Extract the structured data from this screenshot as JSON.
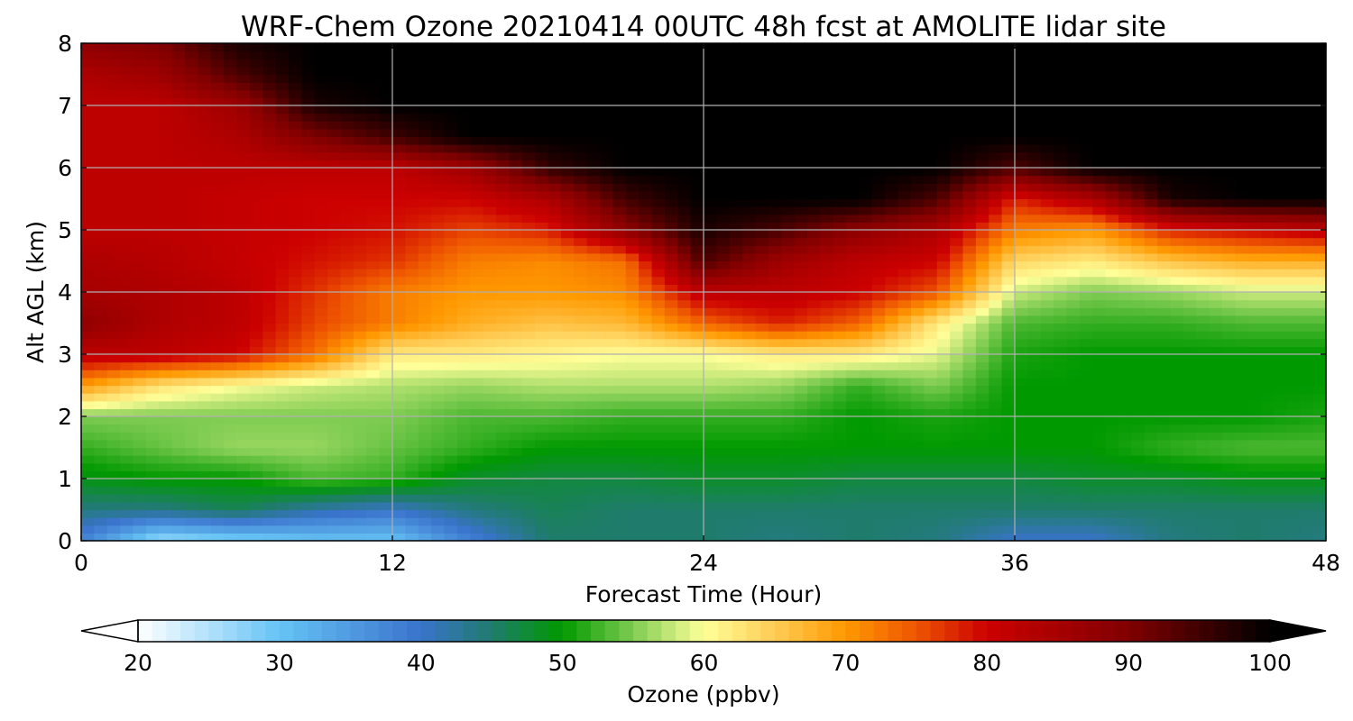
{
  "chart_data": {
    "type": "heatmap",
    "title": "WRF-Chem Ozone  20210414 00UTC 48h fcst at AMOLITE lidar site",
    "xlabel": "Forecast Time (Hour)",
    "ylabel": "Alt AGL (km)",
    "xlim": [
      0,
      48
    ],
    "ylim": [
      0,
      8
    ],
    "x_ticks": [
      "0",
      "12",
      "24",
      "36",
      "48"
    ],
    "y_ticks": [
      "0",
      "1",
      "2",
      "3",
      "4",
      "5",
      "6",
      "7",
      "8"
    ],
    "grid": true,
    "colorbar": {
      "label": "Ozone  (ppbv)",
      "range": [
        20,
        100
      ],
      "ticks": [
        "20",
        "30",
        "40",
        "50",
        "60",
        "70",
        "80",
        "90",
        "100"
      ],
      "extend": "both",
      "stops": [
        {
          "v": 20,
          "c": "#ffffff"
        },
        {
          "v": 30,
          "c": "#66c3f5"
        },
        {
          "v": 40,
          "c": "#3a73cc"
        },
        {
          "v": 45,
          "c": "#1f7c6c"
        },
        {
          "v": 50,
          "c": "#009900"
        },
        {
          "v": 55,
          "c": "#7fcc52"
        },
        {
          "v": 60,
          "c": "#ffff99"
        },
        {
          "v": 65,
          "c": "#ffcc55"
        },
        {
          "v": 70,
          "c": "#ff9900"
        },
        {
          "v": 75,
          "c": "#ee5500"
        },
        {
          "v": 80,
          "c": "#cc0000"
        },
        {
          "v": 90,
          "c": "#800000"
        },
        {
          "v": 100,
          "c": "#000000"
        }
      ]
    },
    "x": [
      0,
      3,
      6,
      9,
      12,
      15,
      18,
      21,
      24,
      27,
      30,
      33,
      36,
      39,
      42,
      45,
      48
    ],
    "y": [
      0,
      0.5,
      1,
      1.5,
      2,
      2.5,
      3,
      3.5,
      4,
      4.5,
      5,
      5.5,
      6,
      6.5,
      7,
      7.5,
      8
    ],
    "values": [
      [
        38,
        26,
        28,
        30,
        30,
        38,
        45,
        45,
        45,
        44,
        45,
        44,
        40,
        40,
        44,
        45,
        44
      ],
      [
        44,
        44,
        46,
        42,
        40,
        44,
        46,
        45,
        45,
        45,
        45,
        45,
        45,
        45,
        45,
        45,
        45
      ],
      [
        49,
        50,
        50,
        53,
        52,
        48,
        47,
        47,
        48,
        48,
        47,
        47,
        47,
        48,
        48,
        49,
        49
      ],
      [
        52,
        54,
        56,
        56,
        54,
        52,
        50,
        50,
        50,
        50,
        50,
        50,
        50,
        50,
        52,
        53,
        53
      ],
      [
        55,
        55,
        55,
        55,
        55,
        53,
        53,
        52,
        52,
        52,
        50,
        51,
        50,
        50,
        50,
        50,
        51
      ],
      [
        70,
        63,
        60,
        58,
        57,
        56,
        57,
        57,
        57,
        56,
        52,
        55,
        50,
        50,
        50,
        50,
        50
      ],
      [
        82,
        82,
        80,
        73,
        62,
        62,
        61,
        60,
        60,
        62,
        62,
        59,
        51,
        50,
        50,
        50,
        50
      ],
      [
        88,
        84,
        82,
        76,
        72,
        68,
        66,
        67,
        74,
        78,
        74,
        62,
        53,
        52,
        52,
        53,
        53
      ],
      [
        85,
        84,
        82,
        77,
        72,
        70,
        70,
        71,
        82,
        82,
        80,
        75,
        58,
        55,
        56,
        58,
        58
      ],
      [
        84,
        83,
        81,
        79,
        77,
        72,
        71,
        73,
        94,
        86,
        82,
        80,
        64,
        62,
        66,
        68,
        68
      ],
      [
        82,
        82,
        81,
        80,
        79,
        76,
        78,
        88,
        98,
        94,
        88,
        84,
        72,
        70,
        78,
        80,
        82
      ],
      [
        82,
        82,
        81,
        80,
        80,
        80,
        84,
        95,
        100,
        100,
        100,
        94,
        78,
        84,
        98,
        100,
        100
      ],
      [
        82,
        82,
        82,
        82,
        82,
        86,
        96,
        100,
        100,
        100,
        100,
        100,
        94,
        100,
        100,
        100,
        100
      ],
      [
        82,
        82,
        84,
        90,
        95,
        100,
        100,
        100,
        100,
        100,
        100,
        100,
        100,
        100,
        100,
        100,
        100
      ],
      [
        82,
        82,
        86,
        98,
        100,
        100,
        100,
        100,
        100,
        100,
        100,
        100,
        100,
        100,
        100,
        100,
        100
      ],
      [
        84,
        86,
        94,
        100,
        100,
        100,
        100,
        100,
        100,
        100,
        100,
        100,
        100,
        100,
        100,
        100,
        100
      ],
      [
        88,
        90,
        98,
        100,
        100,
        100,
        100,
        100,
        100,
        100,
        100,
        100,
        100,
        100,
        100,
        100,
        100
      ]
    ]
  }
}
